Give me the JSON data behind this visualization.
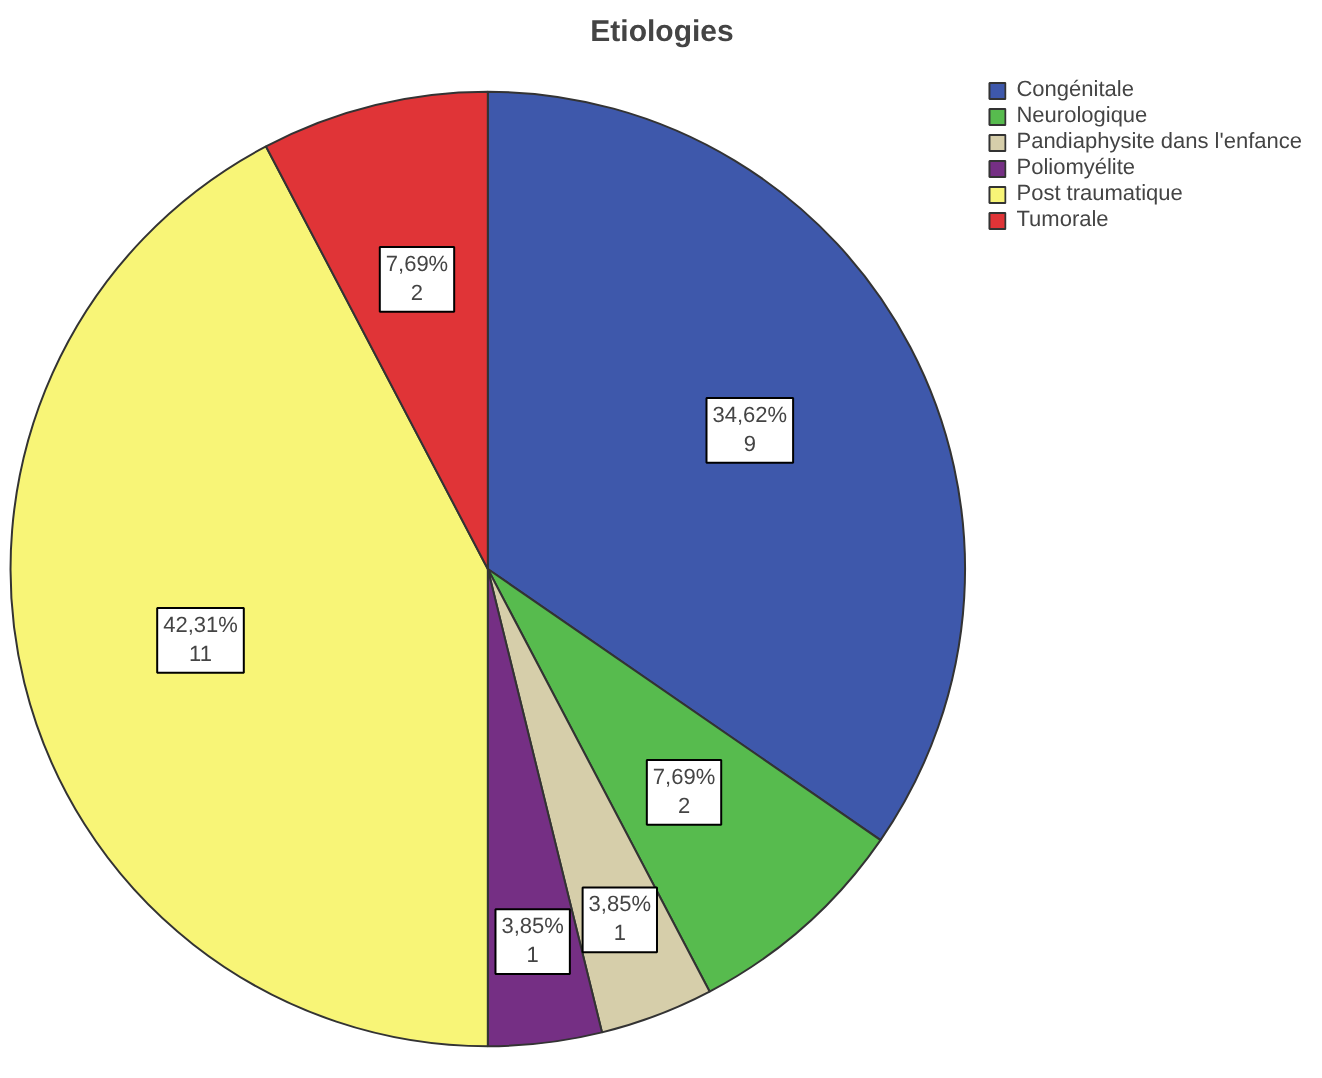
{
  "chart_data": {
    "type": "pie",
    "title": "Etiologies",
    "categories": [
      "Congénitale",
      "Neurologique",
      "Pandiaphysite dans l'enfance",
      "Poliomyélite",
      "Post traumatique",
      "Tumorale"
    ],
    "values": [
      9,
      2,
      1,
      1,
      11,
      2
    ],
    "colors": [
      "#3e58ab",
      "#57bb4e",
      "#d6ceaa",
      "#752f84",
      "#f8f577",
      "#e03437"
    ],
    "value_labels": [
      "34,62%\n9",
      "7,69%\n2",
      "3,85%\n1",
      "3,85%\n1",
      "42,31%\n11",
      "7,69%\n2"
    ],
    "legend": "top right"
  }
}
